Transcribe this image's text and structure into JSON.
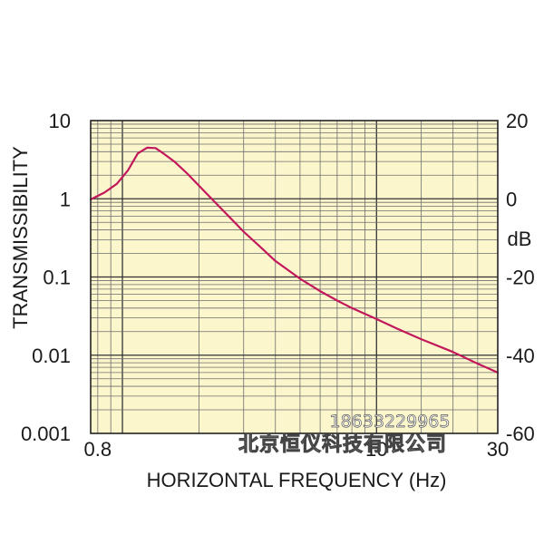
{
  "chart_data": {
    "type": "line",
    "xlabel": "HORIZONTAL FREQUENCY (Hz)",
    "ylabel": "TRANSMISSIBILITY",
    "y2label": "dB",
    "xscale": "log",
    "yscale": "log",
    "xlim": [
      0.75,
      30
    ],
    "ylim": [
      0.001,
      10
    ],
    "y2lim": [
      -60,
      20
    ],
    "xticks": [
      {
        "value": 0.8,
        "label": "0.8"
      },
      {
        "value": 10,
        "label": "10"
      },
      {
        "value": 30,
        "label": "30"
      }
    ],
    "yticks": [
      {
        "value": 10,
        "label": "10"
      },
      {
        "value": 1,
        "label": "1"
      },
      {
        "value": 0.1,
        "label": "0.1"
      },
      {
        "value": 0.01,
        "label": "0.01"
      },
      {
        "value": 0.001,
        "label": "0.001"
      }
    ],
    "y2ticks": [
      {
        "value": 20,
        "label": "20"
      },
      {
        "value": 0,
        "label": "0"
      },
      {
        "value": -20,
        "label": "-20"
      },
      {
        "value": -40,
        "label": "-40"
      },
      {
        "value": -60,
        "label": "-60"
      }
    ],
    "grid": true,
    "series": [
      {
        "x": [
          0.75,
          0.85,
          0.95,
          1.05,
          1.15,
          1.25,
          1.35,
          1.45,
          1.6,
          1.8,
          2.1,
          2.5,
          3.0,
          3.5,
          4.0,
          5.0,
          6.0,
          7.0,
          8.0,
          10.0,
          12.0,
          15.0,
          20.0,
          25.0,
          30.0
        ],
        "y": [
          0.98,
          1.2,
          1.55,
          2.3,
          3.8,
          4.5,
          4.45,
          3.8,
          3.0,
          2.1,
          1.25,
          0.7,
          0.38,
          0.24,
          0.16,
          0.095,
          0.066,
          0.05,
          0.04,
          0.029,
          0.022,
          0.016,
          0.011,
          0.0078,
          0.006
        ]
      }
    ],
    "colors": {
      "line": "#c2185b",
      "plot_bg": "#fcf6cc",
      "grid_major": "#333333",
      "grid_minor": "#6e6e6e"
    }
  },
  "watermark": {
    "phone": "18633229965",
    "company": "北京恒仪科技有限公司"
  }
}
